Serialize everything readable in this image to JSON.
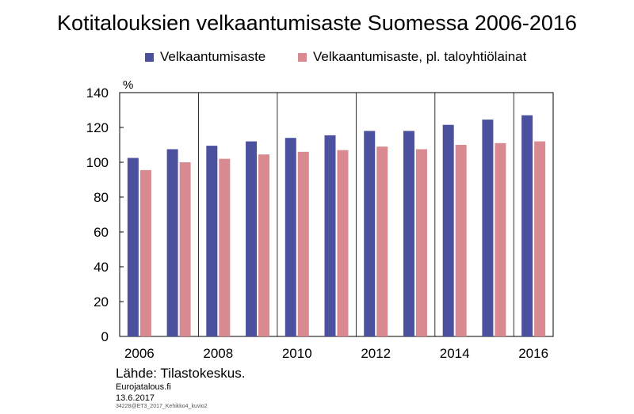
{
  "chart_data": {
    "type": "bar",
    "title": "Kotitalouksien velkaantumisaste Suomessa 2006-2016",
    "ylabel": "%",
    "xlabel": "",
    "ylim": [
      0,
      140
    ],
    "yticks": [
      0,
      20,
      40,
      60,
      80,
      100,
      120,
      140
    ],
    "x_tick_labels": [
      "2006",
      "2008",
      "2010",
      "2012",
      "2014",
      "2016"
    ],
    "categories": [
      "2006",
      "2007",
      "2008",
      "2009",
      "2010",
      "2011",
      "2012",
      "2013",
      "2014",
      "2015",
      "2016"
    ],
    "grid": "vertical",
    "legend_position": "top",
    "series": [
      {
        "name": "Velkaantumisaste",
        "color": "#4c519f",
        "values": [
          102.5,
          107.5,
          109.5,
          112,
          114,
          115.5,
          118,
          118,
          121.5,
          124.5,
          127
        ]
      },
      {
        "name": "Velkaantumisaste, pl. taloyhtiölainat",
        "color": "#d98a90",
        "values": [
          95.5,
          100,
          102,
          104.5,
          106,
          107,
          109,
          107.5,
          110,
          111,
          112
        ]
      }
    ]
  },
  "footer": {
    "source": "Lähde: Tilastokeskus.",
    "site": "Eurojatalous.fi",
    "date": "13.6.2017",
    "code": "34228@ET3_2017_Kehikko4_kuvio2"
  }
}
